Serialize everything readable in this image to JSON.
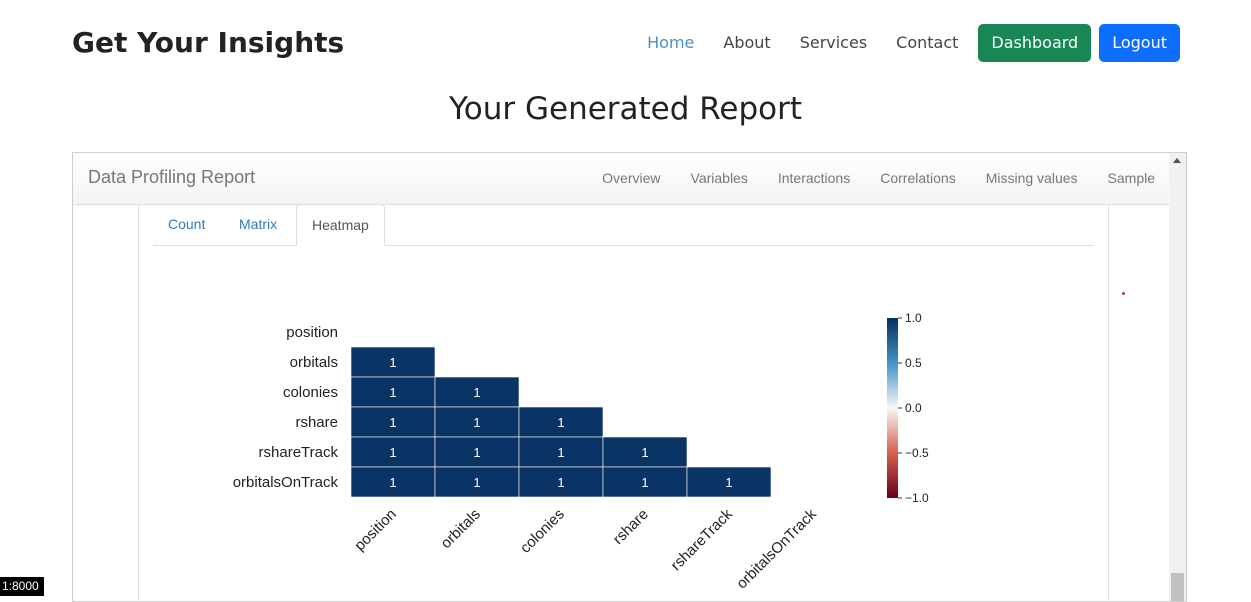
{
  "site": {
    "title": "Get Your Insights"
  },
  "nav": {
    "links": [
      "Home",
      "About",
      "Services",
      "Contact"
    ],
    "active": "Home",
    "dashboard_label": "Dashboard",
    "logout_label": "Logout",
    "colors": {
      "dashboard": "#198754",
      "logout": "#0d6efd",
      "active_link": "#4a90c8"
    }
  },
  "page": {
    "heading": "Your Generated Report"
  },
  "report": {
    "brand": "Data Profiling Report",
    "menu": [
      "Overview",
      "Variables",
      "Interactions",
      "Correlations",
      "Missing values",
      "Sample"
    ],
    "tabs": [
      "Count",
      "Matrix",
      "Heatmap"
    ],
    "active_tab": "Heatmap"
  },
  "chart_data": {
    "type": "heatmap",
    "variables": [
      "position",
      "orbitals",
      "colonies",
      "rshare",
      "rshareTrack",
      "orbitalsOnTrack"
    ],
    "cells": [
      {
        "row": "orbitals",
        "col": "position",
        "value": 1
      },
      {
        "row": "colonies",
        "col": "position",
        "value": 1
      },
      {
        "row": "colonies",
        "col": "orbitals",
        "value": 1
      },
      {
        "row": "rshare",
        "col": "position",
        "value": 1
      },
      {
        "row": "rshare",
        "col": "orbitals",
        "value": 1
      },
      {
        "row": "rshare",
        "col": "colonies",
        "value": 1
      },
      {
        "row": "rshareTrack",
        "col": "position",
        "value": 1
      },
      {
        "row": "rshareTrack",
        "col": "orbitals",
        "value": 1
      },
      {
        "row": "rshareTrack",
        "col": "colonies",
        "value": 1
      },
      {
        "row": "rshareTrack",
        "col": "rshare",
        "value": 1
      },
      {
        "row": "orbitalsOnTrack",
        "col": "position",
        "value": 1
      },
      {
        "row": "orbitalsOnTrack",
        "col": "orbitals",
        "value": 1
      },
      {
        "row": "orbitalsOnTrack",
        "col": "colonies",
        "value": 1
      },
      {
        "row": "orbitalsOnTrack",
        "col": "rshare",
        "value": 1
      },
      {
        "row": "orbitalsOnTrack",
        "col": "rshareTrack",
        "value": 1
      }
    ],
    "colorbar": {
      "ticks": [
        "1.0",
        "0.5",
        "0.0",
        "−0.5",
        "−1.0"
      ],
      "range": [
        -1,
        1
      ],
      "colors": [
        "#67001f",
        "#d6604d",
        "#f7f7f7",
        "#4393c3",
        "#053061"
      ]
    },
    "cell_color": "#0b3466",
    "title": "",
    "xlabel": "",
    "ylabel": ""
  },
  "status": {
    "zoom_badge": "1:8000"
  }
}
